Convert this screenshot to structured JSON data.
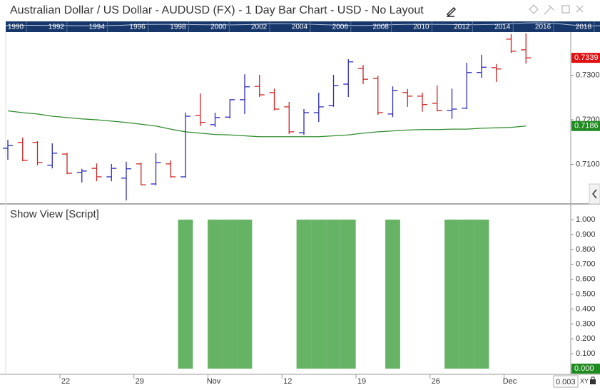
{
  "header": {
    "title": "Australian Dollar / US Dollar - AUDUSD (FX) - 1 Day Bar Chart - USD - No Layout"
  },
  "navigator": {
    "years": [
      1990,
      1992,
      1994,
      1996,
      1998,
      2000,
      2002,
      2004,
      2006,
      2008,
      2010,
      2012,
      2014,
      2016,
      2018
    ]
  },
  "ui": {
    "scale_input": "0.003",
    "xy": "XY"
  },
  "chart_data": [
    {
      "type": "ohlc",
      "categories": [
        null,
        null,
        null,
        null,
        "22",
        null,
        null,
        null,
        null,
        "29",
        null,
        null,
        null,
        null,
        "Nov",
        null,
        null,
        null,
        null,
        "12",
        null,
        null,
        null,
        null,
        "19",
        null,
        null,
        null,
        null,
        "26",
        null,
        null,
        null,
        null,
        "Dec",
        null
      ],
      "open": [
        0.7136,
        0.7149,
        0.7149,
        0.7098,
        0.7123,
        0.7082,
        0.7091,
        0.7072,
        0.7069,
        0.7101,
        0.7056,
        0.7101,
        0.7072,
        0.721,
        0.7189,
        0.7206,
        0.7245,
        0.7275,
        0.7261,
        0.7229,
        0.7171,
        0.7216,
        0.7232,
        0.728,
        0.7315,
        0.7293,
        0.7213,
        0.7261,
        0.7253,
        0.7237,
        0.7221,
        0.7226,
        0.7306,
        0.7317,
        0.7381,
        0.7357
      ],
      "high": [
        0.7155,
        0.716,
        0.7152,
        0.7147,
        0.7126,
        0.709,
        0.7102,
        0.7101,
        0.7106,
        0.7104,
        0.7125,
        0.7109,
        0.7216,
        0.7259,
        0.7216,
        0.7246,
        0.7302,
        0.7301,
        0.727,
        0.724,
        0.7224,
        0.7261,
        0.7301,
        0.7336,
        0.7323,
        0.7299,
        0.7275,
        0.7269,
        0.7261,
        0.7277,
        0.727,
        0.7328,
        0.7346,
        0.7325,
        0.7392,
        0.7394
      ],
      "low": [
        0.711,
        0.7107,
        0.7098,
        0.7091,
        0.7078,
        0.7059,
        0.7062,
        0.7062,
        0.7019,
        0.7053,
        0.7053,
        0.707,
        0.707,
        0.7186,
        0.7184,
        0.7203,
        0.7213,
        0.7251,
        0.7221,
        0.7168,
        0.7166,
        0.7195,
        0.7229,
        0.7251,
        0.728,
        0.7211,
        0.7206,
        0.7229,
        0.7218,
        0.7219,
        0.7202,
        0.7224,
        0.7294,
        0.7285,
        0.735,
        0.7326
      ],
      "close": [
        0.7142,
        0.7109,
        0.7104,
        0.7125,
        0.708,
        0.7085,
        0.7072,
        0.7091,
        0.709,
        0.7054,
        0.7104,
        0.7072,
        0.7208,
        0.7194,
        0.7205,
        0.7245,
        0.7274,
        0.7256,
        0.7224,
        0.7173,
        0.7216,
        0.7229,
        0.7277,
        0.733,
        0.7291,
        0.7216,
        0.7266,
        0.7253,
        0.7234,
        0.7221,
        0.7224,
        0.7306,
        0.7318,
        0.7314,
        0.7354,
        0.7339
      ],
      "up_color": "#2a2ab8",
      "down_color": "#cc2222",
      "moving_average": {
        "color": "#2e8b2e",
        "values": [
          0.722,
          0.7216,
          0.7213,
          0.7208,
          0.7205,
          0.7202,
          0.72,
          0.7197,
          0.7194,
          0.719,
          0.7186,
          0.7179,
          0.7173,
          0.717,
          0.7167,
          0.7166,
          0.7164,
          0.7162,
          0.7162,
          0.7162,
          0.7162,
          0.7162,
          0.7164,
          0.7166,
          0.717,
          0.7173,
          0.7175,
          0.7177,
          0.7178,
          0.7178,
          0.7179,
          0.7179,
          0.7181,
          0.7182,
          0.7183,
          0.7186
        ]
      },
      "ylim": [
        0.70128,
        0.73968
      ],
      "yticks": [
        {
          "value": 0.71,
          "label": "0.7100"
        },
        {
          "value": 0.72,
          "label": "0.7200"
        },
        {
          "value": 0.73,
          "label": "0.7300"
        }
      ],
      "markers": [
        {
          "value": 0.7339,
          "label": "0.7339",
          "color": "#e01010"
        },
        {
          "value": 0.7186,
          "label": "0.7186",
          "color": "#1f8a1f"
        }
      ]
    },
    {
      "type": "bar",
      "title": "Show View [Script]",
      "color": "#66b366",
      "values": [
        0,
        0,
        0,
        0,
        0,
        0,
        0,
        0,
        0,
        0,
        0,
        0,
        1,
        0,
        1,
        1,
        1,
        0,
        0,
        0,
        1,
        1,
        1,
        1,
        0,
        0,
        1,
        0,
        0,
        0,
        1,
        1,
        1,
        0,
        0,
        0
      ],
      "ylim": [
        -0.038,
        1.096
      ],
      "yticks": [
        {
          "value": 0,
          "label": "0.000"
        },
        {
          "value": 0.1,
          "label": "0.100"
        },
        {
          "value": 0.2,
          "label": "0.200"
        },
        {
          "value": 0.3,
          "label": "0.300"
        },
        {
          "value": 0.4,
          "label": "0.400"
        },
        {
          "value": 0.5,
          "label": "0.500"
        },
        {
          "value": 0.6,
          "label": "0.600"
        },
        {
          "value": 0.7,
          "label": "0.700"
        },
        {
          "value": 0.8,
          "label": "0.800"
        },
        {
          "value": 0.9,
          "label": "0.900"
        },
        {
          "value": 1,
          "label": "1.000"
        }
      ],
      "markers": [
        {
          "value": 0,
          "label": "0.000",
          "color": "#1f8a1f"
        }
      ]
    }
  ]
}
